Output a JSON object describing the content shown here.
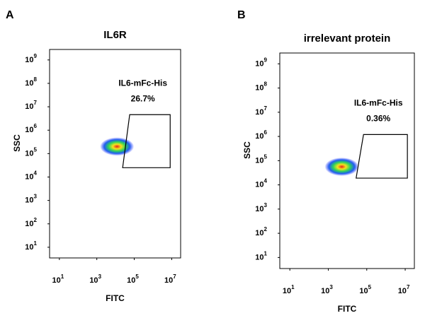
{
  "chart_data": [
    {
      "type": "flow",
      "panel": "A",
      "title": "IL6R",
      "xlabel": "FITC",
      "ylabel": "SSC",
      "xscale": "log",
      "yscale": "log",
      "xlim": [
        3,
        30000000
      ],
      "ylim": [
        3.5,
        2800000000
      ],
      "xticks": [
        {
          "value": 10,
          "label": "10",
          "sup": "1"
        },
        {
          "value": 1000,
          "label": "10",
          "sup": "3"
        },
        {
          "value": 100000,
          "label": "10",
          "sup": "5"
        },
        {
          "value": 10000000,
          "label": "10",
          "sup": "7"
        }
      ],
      "yticks": [
        {
          "value": 10,
          "label": "10",
          "sup": "1"
        },
        {
          "value": 100,
          "label": "10",
          "sup": "2"
        },
        {
          "value": 1000,
          "label": "10",
          "sup": "3"
        },
        {
          "value": 10000,
          "label": "10",
          "sup": "4"
        },
        {
          "value": 100000,
          "label": "10",
          "sup": "5"
        },
        {
          "value": 1000000,
          "label": "10",
          "sup": "6"
        },
        {
          "value": 10000000,
          "label": "10",
          "sup": "7"
        },
        {
          "value": 100000000,
          "label": "10",
          "sup": "8"
        },
        {
          "value": 1000000000,
          "label": "10",
          "sup": "9"
        }
      ],
      "population": {
        "x": 12000,
        "y": 200000
      },
      "gate": {
        "name": "IL6-mFc-His",
        "value": 26.7,
        "value_label": "26.7%",
        "x": [
          57000,
          8300000,
          8300000,
          24000
        ],
        "y": [
          4600000,
          4600000,
          25000,
          25000
        ]
      }
    },
    {
      "type": "flow",
      "panel": "B",
      "title": "irrelevant protein",
      "xlabel": "FITC",
      "ylabel": "SSC",
      "xscale": "log",
      "yscale": "log",
      "xlim": [
        3,
        30000000
      ],
      "ylim": [
        3.5,
        2800000000
      ],
      "xticks": [
        {
          "value": 10,
          "label": "10",
          "sup": "1"
        },
        {
          "value": 1000,
          "label": "10",
          "sup": "3"
        },
        {
          "value": 100000,
          "label": "10",
          "sup": "5"
        },
        {
          "value": 10000000,
          "label": "10",
          "sup": "7"
        }
      ],
      "yticks": [
        {
          "value": 10,
          "label": "10",
          "sup": "1"
        },
        {
          "value": 100,
          "label": "10",
          "sup": "2"
        },
        {
          "value": 1000,
          "label": "10",
          "sup": "3"
        },
        {
          "value": 10000,
          "label": "10",
          "sup": "4"
        },
        {
          "value": 100000,
          "label": "10",
          "sup": "5"
        },
        {
          "value": 1000000,
          "label": "10",
          "sup": "6"
        },
        {
          "value": 10000000,
          "label": "10",
          "sup": "7"
        },
        {
          "value": 100000000,
          "label": "10",
          "sup": "8"
        },
        {
          "value": 1000000000,
          "label": "10",
          "sup": "9"
        }
      ],
      "population": {
        "x": 5000,
        "y": 56000
      },
      "gate": {
        "name": "IL6-mFc-His",
        "value": 0.36,
        "value_label": "0.36%",
        "x": [
          68000,
          13000000,
          13000000,
          28000
        ],
        "y": [
          1200000,
          1200000,
          19000,
          19000
        ]
      }
    }
  ]
}
